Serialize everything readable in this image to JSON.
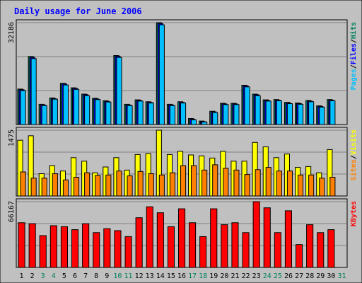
{
  "colors": {
    "background": "#c0c0c0",
    "panel": "#c0c0c0",
    "grid": "#808080",
    "title": "#0000ff",
    "hits": "#00805c",
    "files": "#0000ff",
    "pages": "#00c0ff",
    "visits": "#ffff00",
    "sites": "#ff8000",
    "kbytes": "#ff0000",
    "weekday_label": "#000000",
    "weekend_label": "#00805c",
    "separator": "#000000"
  },
  "chart_data": {
    "type": "bar",
    "title": "Daily usage for June 2006",
    "categories": [
      "1",
      "2",
      "3",
      "4",
      "5",
      "6",
      "7",
      "8",
      "9",
      "10",
      "11",
      "12",
      "13",
      "14",
      "15",
      "16",
      "17",
      "18",
      "19",
      "20",
      "21",
      "22",
      "23",
      "24",
      "25",
      "26",
      "27",
      "28",
      "29",
      "30",
      "31"
    ],
    "weekend_days": [
      "3",
      "4",
      "10",
      "11",
      "17",
      "18",
      "24",
      "25",
      "31"
    ],
    "panels": [
      {
        "id": "hits",
        "max_label": "32186",
        "ylim": [
          0,
          32186
        ],
        "legend": [
          "Pages",
          "/",
          "Files",
          "/",
          "Hits"
        ],
        "legend_colors": [
          "#00c0ff",
          "#000000",
          "#0000ff",
          "#000000",
          "#00805c"
        ],
        "series": [
          {
            "name": "Hits",
            "values": [
              11200,
              21500,
              6400,
              8400,
              13000,
              11600,
              9600,
              8300,
              7500,
              21800,
              6400,
              7800,
              7200,
              32186,
              6400,
              7200,
              1900,
              1100,
              4200,
              6700,
              6700,
              12400,
              9600,
              7800,
              7900,
              7000,
              6800,
              7600,
              5900,
              7900,
              0
            ]
          },
          {
            "name": "Files",
            "values": [
              11000,
              21200,
              6200,
              8200,
              12800,
              11400,
              9400,
              8100,
              7300,
              21600,
              6200,
              7600,
              7000,
              31900,
              6200,
              7000,
              1700,
              900,
              4000,
              6500,
              6500,
              12200,
              9400,
              7600,
              7700,
              6800,
              6600,
              7400,
              5700,
              7700,
              0
            ]
          },
          {
            "name": "Pages",
            "values": [
              10700,
              20800,
              6000,
              8000,
              12500,
              11100,
              9100,
              7900,
              7100,
              21200,
              6000,
              7400,
              6800,
              31500,
              6000,
              6800,
              1500,
              800,
              3800,
              6300,
              6300,
              11900,
              9100,
              7400,
              7500,
              6600,
              6400,
              7200,
              5500,
              7500,
              0
            ]
          }
        ]
      },
      {
        "id": "visits",
        "max_label": "1475",
        "ylim": [
          0,
          1475
        ],
        "legend": [
          "Sites",
          "/",
          "Visits"
        ],
        "legend_colors": [
          "#ff8000",
          "#000000",
          "#ffff00"
        ],
        "series": [
          {
            "name": "Visits",
            "values": [
              1250,
              1350,
              500,
              680,
              560,
              860,
              780,
              520,
              650,
              860,
              580,
              930,
              950,
              1475,
              930,
              1000,
              920,
              900,
              850,
              1000,
              780,
              780,
              1200,
              1100,
              860,
              940,
              640,
              660,
              520,
              1040,
              0
            ]
          },
          {
            "name": "Sites",
            "values": [
              540,
              400,
              400,
              500,
              360,
              420,
              520,
              460,
              470,
              560,
              450,
              550,
              500,
              470,
              520,
              680,
              680,
              580,
              700,
              620,
              580,
              480,
              590,
              640,
              560,
              560,
              470,
              470,
              400,
              420,
              0
            ]
          }
        ]
      },
      {
        "id": "kbytes",
        "max_label": "66167",
        "ylim": [
          0,
          66167
        ],
        "legend": [
          "KBytes"
        ],
        "legend_colors": [
          "#ff0000"
        ],
        "series": [
          {
            "name": "KBytes",
            "values": [
              45000,
              44000,
              32000,
              42000,
              41000,
              38000,
              44000,
              35000,
              39000,
              37000,
              31000,
              50000,
              61000,
              55000,
              41000,
              59000,
              45000,
              31000,
              59000,
              43000,
              45000,
              35000,
              66167,
              60000,
              35000,
              57000,
              23000,
              43000,
              35000,
              38000,
              0
            ]
          }
        ]
      }
    ]
  }
}
